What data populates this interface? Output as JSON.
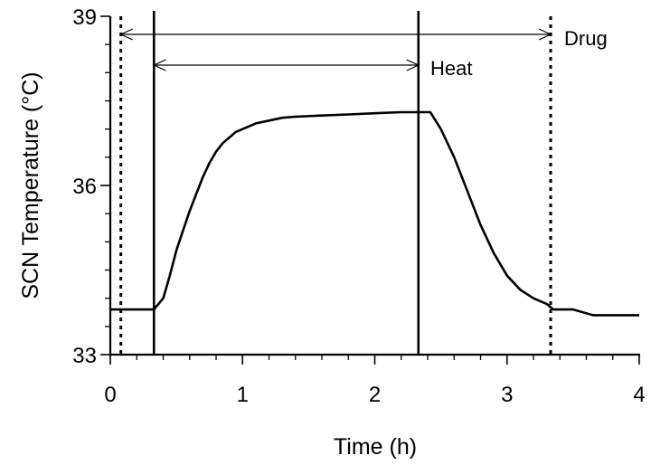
{
  "chart_data": {
    "type": "line",
    "title": "",
    "xlabel": "Time (h)",
    "ylabel": "SCN Temperature (°C)",
    "xlim": [
      0,
      4
    ],
    "ylim": [
      33,
      39
    ],
    "x_ticks": [
      0,
      1,
      2,
      3,
      4
    ],
    "x_tick_labels": [
      "0",
      "1",
      "2",
      "3",
      "4"
    ],
    "y_ticks": [
      33,
      36,
      39
    ],
    "y_tick_labels": [
      "33",
      "36",
      "39"
    ],
    "grid": false,
    "series": [
      {
        "x": [
          0,
          0.33,
          0.4,
          0.45,
          0.5,
          0.55,
          0.6,
          0.65,
          0.7,
          0.75,
          0.8,
          0.85,
          0.9,
          0.95,
          1.0,
          1.1,
          1.2,
          1.3,
          1.4,
          1.6,
          1.8,
          2.0,
          2.2,
          2.3,
          2.42,
          2.5,
          2.6,
          2.7,
          2.8,
          2.9,
          3.0,
          3.1,
          3.2,
          3.3,
          3.35,
          3.5,
          3.65,
          3.8,
          4.0
        ],
        "y": [
          33.8,
          33.8,
          34.0,
          34.4,
          34.85,
          35.2,
          35.55,
          35.85,
          36.15,
          36.4,
          36.6,
          36.75,
          36.85,
          36.95,
          37.0,
          37.1,
          37.15,
          37.2,
          37.22,
          37.24,
          37.26,
          37.28,
          37.3,
          37.3,
          37.3,
          37.0,
          36.5,
          35.9,
          35.3,
          34.8,
          34.4,
          34.15,
          34.0,
          33.9,
          33.8,
          33.8,
          33.7,
          33.7,
          33.7
        ]
      }
    ],
    "annotations": {
      "heat": {
        "label": "Heat",
        "start": 0.33,
        "end": 2.33
      },
      "drug": {
        "label": "Drug",
        "start": 0.08,
        "end": 3.33
      }
    }
  }
}
